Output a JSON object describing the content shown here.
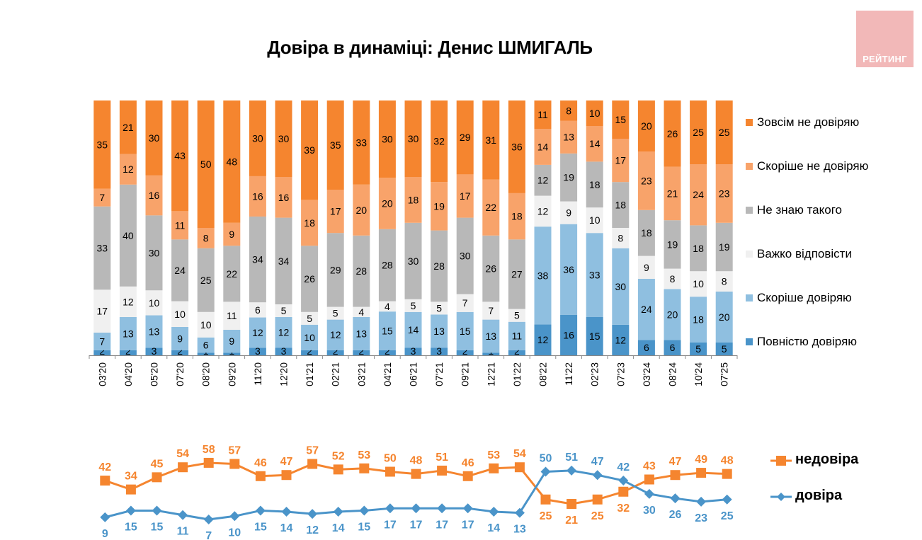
{
  "title": "Довіра в динаміці: Денис ШМИГАЛЬ",
  "logo_text": "РЕЙТИНГ",
  "colors": {
    "zovsim_ne": "#f5852f",
    "skorishe_ne": "#f8a36a",
    "ne_znayu": "#b8b8b8",
    "vazhko": "#f0f0f0",
    "skorishe_dov": "#8fbfe0",
    "povnistyu": "#4a94c9",
    "nedovira_line": "#f5852f",
    "dovira_line": "#4a94c9",
    "logo_bg": "#f2b8b8"
  },
  "chart_data": [
    {
      "type": "bar",
      "stacked": true,
      "percent": true,
      "title": "Довіра в динаміці: Денис ШМИГАЛЬ",
      "categories": [
        "03'20",
        "04'20",
        "05'20",
        "07'20",
        "08'20",
        "09'20",
        "11'20",
        "12'20",
        "01'21",
        "02'21",
        "03'21",
        "04'21",
        "06'21",
        "07'21",
        "09'21",
        "12'21",
        "01'22",
        "08'22",
        "11'22",
        "02'23",
        "07'23",
        "03'24",
        "08'24",
        "10'24",
        "07'25"
      ],
      "series": [
        {
          "name": "Повністю довіряю",
          "color_key": "povnistyu",
          "values": [
            2,
            2,
            3,
            2,
            1,
            1,
            3,
            3,
            2,
            2,
            2,
            2,
            3,
            3,
            2,
            1,
            2,
            12,
            16,
            15,
            12,
            6,
            6,
            5,
            5
          ]
        },
        {
          "name": "Скоріше довіряю",
          "color_key": "skorishe_dov",
          "values": [
            7,
            13,
            13,
            9,
            6,
            9,
            12,
            12,
            10,
            12,
            13,
            15,
            14,
            13,
            15,
            13,
            11,
            38,
            36,
            33,
            30,
            24,
            20,
            18,
            20
          ]
        },
        {
          "name": "Важко відповісти",
          "color_key": "vazhko",
          "values": [
            17,
            12,
            10,
            10,
            10,
            11,
            6,
            5,
            5,
            5,
            4,
            4,
            5,
            5,
            7,
            7,
            5,
            12,
            9,
            10,
            8,
            9,
            8,
            10,
            8
          ]
        },
        {
          "name": "Не знаю такого",
          "color_key": "ne_znayu",
          "values": [
            33,
            40,
            30,
            24,
            25,
            22,
            34,
            34,
            26,
            29,
            28,
            28,
            30,
            28,
            30,
            26,
            27,
            12,
            19,
            18,
            18,
            18,
            19,
            18,
            19
          ]
        },
        {
          "name": "Скоріше не довіряю",
          "color_key": "skorishe_ne",
          "values": [
            7,
            12,
            16,
            11,
            8,
            9,
            16,
            16,
            18,
            17,
            20,
            20,
            18,
            19,
            17,
            22,
            18,
            14,
            13,
            14,
            17,
            23,
            21,
            24,
            23
          ]
        },
        {
          "name": "Зовсім не довіряю",
          "color_key": "zovsim_ne",
          "values": [
            35,
            21,
            30,
            43,
            50,
            48,
            30,
            30,
            39,
            35,
            33,
            30,
            30,
            32,
            29,
            31,
            36,
            11,
            8,
            10,
            15,
            20,
            26,
            25,
            25
          ]
        }
      ],
      "legend": [
        "Зовсім не довіряю",
        "Скоріше не довіряю",
        "Не знаю такого",
        "Важко відповісти",
        "Скоріше довіряю",
        "Повністю довіряю"
      ],
      "legend_position": "right",
      "grid": false
    },
    {
      "type": "line",
      "categories": [
        "03'20",
        "04'20",
        "05'20",
        "07'20",
        "08'20",
        "09'20",
        "11'20",
        "12'20",
        "01'21",
        "02'21",
        "03'21",
        "04'21",
        "06'21",
        "07'21",
        "09'21",
        "12'21",
        "01'22",
        "08'22",
        "11'22",
        "02'23",
        "07'23",
        "03'24",
        "08'24",
        "10'24",
        "07'25"
      ],
      "series": [
        {
          "name": "недовіра",
          "color_key": "nedovira_line",
          "marker": "square",
          "values": [
            42,
            34,
            45,
            54,
            58,
            57,
            46,
            47,
            57,
            52,
            53,
            50,
            48,
            51,
            46,
            53,
            54,
            25,
            21,
            25,
            32,
            43,
            47,
            49,
            48
          ]
        },
        {
          "name": "довіра",
          "color_key": "dovira_line",
          "marker": "diamond",
          "values": [
            9,
            15,
            15,
            11,
            7,
            10,
            15,
            14,
            12,
            14,
            15,
            17,
            17,
            17,
            17,
            14,
            13,
            50,
            51,
            47,
            42,
            30,
            26,
            23,
            25
          ]
        }
      ],
      "legend": [
        "недовіра",
        "довіра"
      ],
      "legend_position": "right",
      "grid": false
    }
  ]
}
